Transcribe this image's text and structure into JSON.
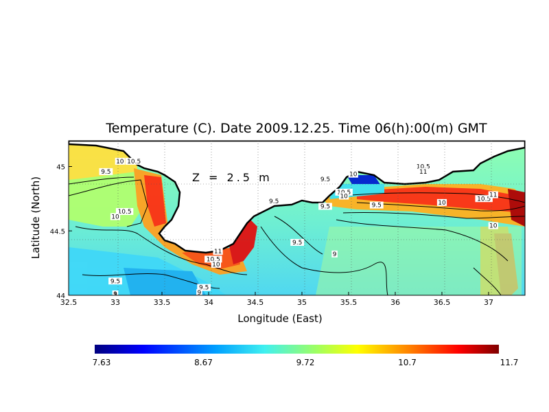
{
  "title": "Temperature (C). Date 2009.12.25. Time 06(h):00(m) GMT",
  "depth_label": "Z = 2.5 m",
  "xlabel": "Longitude (East)",
  "ylabel": "Latitude (North)",
  "x_ticks": [
    "32.5",
    "33",
    "33.5",
    "34",
    "34.5",
    "35",
    "35.5",
    "36",
    "36.5",
    "37"
  ],
  "y_ticks": [
    "44",
    "44.5",
    "45"
  ],
  "colorbar": {
    "ticks": [
      "7.63",
      "8.67",
      "9.72",
      "10.7",
      "11.7"
    ],
    "min": 7.63,
    "max": 11.7
  },
  "contour_labels": [
    {
      "text": "10",
      "lon": 33.05,
      "lat": 45.03
    },
    {
      "text": "10.5",
      "lon": 33.2,
      "lat": 45.03
    },
    {
      "text": "9.5",
      "lon": 32.9,
      "lat": 44.95
    },
    {
      "text": "10.5",
      "lon": 33.1,
      "lat": 44.64
    },
    {
      "text": "10",
      "lon": 33.0,
      "lat": 44.6
    },
    {
      "text": "9.5",
      "lon": 33.0,
      "lat": 44.1
    },
    {
      "text": "9",
      "lon": 33.0,
      "lat": 44.0
    },
    {
      "text": "9.5",
      "lon": 33.95,
      "lat": 44.05
    },
    {
      "text": "9",
      "lon": 33.9,
      "lat": 44.01
    },
    {
      "text": "11",
      "lon": 34.1,
      "lat": 44.33
    },
    {
      "text": "10.5",
      "lon": 34.05,
      "lat": 44.27
    },
    {
      "text": "10",
      "lon": 34.08,
      "lat": 44.23
    },
    {
      "text": "9.5",
      "lon": 34.7,
      "lat": 44.72
    },
    {
      "text": "9.5",
      "lon": 34.95,
      "lat": 44.4
    },
    {
      "text": "9",
      "lon": 35.35,
      "lat": 44.31
    },
    {
      "text": "9.5",
      "lon": 35.25,
      "lat": 44.89
    },
    {
      "text": "10",
      "lon": 35.55,
      "lat": 44.93
    },
    {
      "text": "10.5",
      "lon": 35.45,
      "lat": 44.79
    },
    {
      "text": "10",
      "lon": 35.45,
      "lat": 44.76
    },
    {
      "text": "9.5",
      "lon": 35.25,
      "lat": 44.68
    },
    {
      "text": "10.5",
      "lon": 36.3,
      "lat": 44.99
    },
    {
      "text": "11",
      "lon": 36.3,
      "lat": 44.95
    },
    {
      "text": "9.5",
      "lon": 35.8,
      "lat": 44.69
    },
    {
      "text": "10",
      "lon": 36.5,
      "lat": 44.71
    },
    {
      "text": "10.5",
      "lon": 36.95,
      "lat": 44.74
    },
    {
      "text": "11",
      "lon": 37.05,
      "lat": 44.77
    },
    {
      "text": "10",
      "lon": 37.05,
      "lat": 44.53
    }
  ]
}
